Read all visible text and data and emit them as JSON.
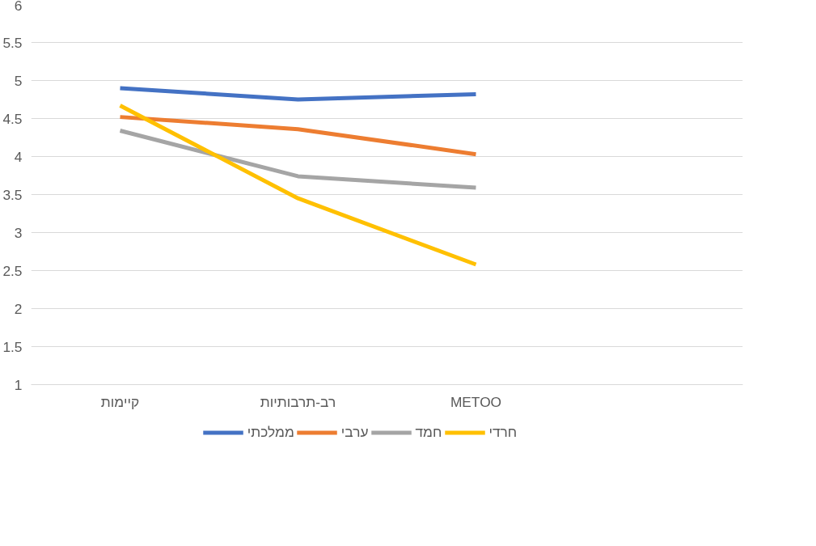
{
  "chart_data": {
    "type": "line",
    "categories": [
      "קיימות",
      "רב-תרבותיות",
      "METOO"
    ],
    "series": [
      {
        "name": "ממלכתי",
        "color": "#4472c4",
        "values": [
          4.9,
          4.75,
          4.82
        ]
      },
      {
        "name": "ערבי",
        "color": "#ed7d31",
        "values": [
          4.52,
          4.36,
          4.03
        ]
      },
      {
        "name": "חמד",
        "color": "#a5a5a5",
        "values": [
          4.34,
          3.74,
          3.59
        ]
      },
      {
        "name": "חרדי",
        "color": "#ffc000",
        "values": [
          4.67,
          3.45,
          2.58
        ]
      }
    ],
    "ylim": [
      1,
      6
    ],
    "yticks": [
      1,
      1.5,
      2,
      2.5,
      3,
      3.5,
      4,
      4.5,
      5,
      5.5,
      6
    ],
    "grid": "y",
    "legend": "bottom",
    "marker": "none",
    "line_style": "solid"
  }
}
